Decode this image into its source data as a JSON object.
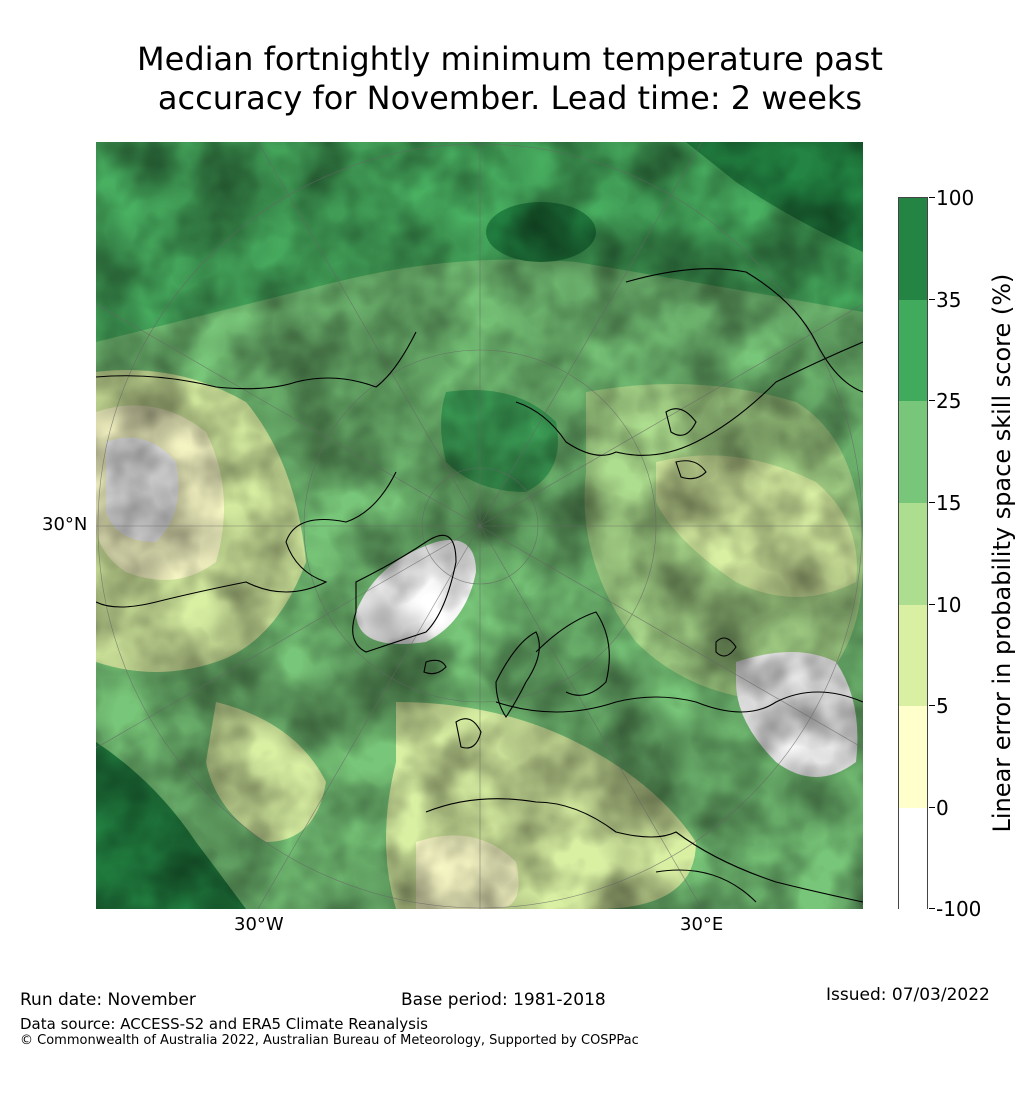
{
  "title_line1": "Median fortnightly minimum temperature past",
  "title_line2": "accuracy for November. Lead time: 2 weeks",
  "map": {
    "lat_labels": [
      "30°N"
    ],
    "lon_labels": [
      "30°W",
      "30°E"
    ],
    "legend": {
      "title": "Linear error in probability space skill score (%)",
      "bins": [
        {
          "label": "-100",
          "color": "#ffffff"
        },
        {
          "label": "0",
          "color": "#ffffcc"
        },
        {
          "label": "5",
          "color": "#d9f0a3"
        },
        {
          "label": "10",
          "color": "#addd8e"
        },
        {
          "label": "15",
          "color": "#78c679"
        },
        {
          "label": "25",
          "color": "#41ab5d"
        },
        {
          "label": "35",
          "color": "#238443"
        }
      ],
      "top_label": "100"
    }
  },
  "footer": {
    "run_date": "Run date: November",
    "base_period": "Base period: 1981-2018",
    "issued": "Issued: 07/03/2022",
    "data_source": "Data source: ACCESS-S2 and ERA5 Climate Reanalysis",
    "copyright": "© Commonwealth of Australia 2022, Australian Bureau of Meteorology, Supported by COSPPac"
  }
}
